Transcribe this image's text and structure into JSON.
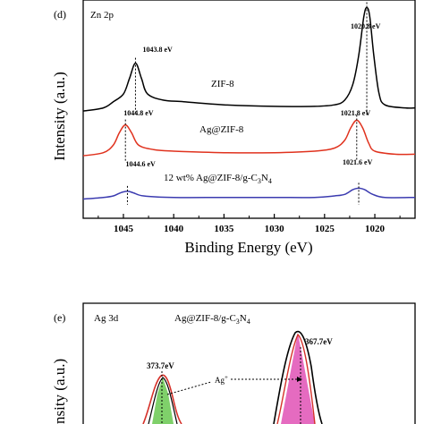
{
  "chart_data": [
    {
      "type": "line",
      "panel_label": "(d)",
      "element_label": "Zn 2p",
      "xlabel": "Binding Energy (eV)",
      "ylabel": "Intensity (a.u.)",
      "xlim": [
        1049,
        1016
      ],
      "x_ticks": [
        1045,
        1040,
        1035,
        1030,
        1025,
        1020
      ],
      "series": [
        {
          "name": "ZIF-8",
          "color": "#000000",
          "points": [
            [
              1049,
              0.66
            ],
            [
              1047,
              0.68
            ],
            [
              1046,
              0.72
            ],
            [
              1045,
              0.77
            ],
            [
              1044.4,
              0.87
            ],
            [
              1043.8,
              0.97
            ],
            [
              1043.2,
              0.87
            ],
            [
              1042.6,
              0.77
            ],
            [
              1041,
              0.73
            ],
            [
              1039,
              0.72
            ],
            [
              1035,
              0.7
            ],
            [
              1030,
              0.69
            ],
            [
              1026,
              0.69
            ],
            [
              1024,
              0.7
            ],
            [
              1023,
              0.73
            ],
            [
              1022.2,
              0.83
            ],
            [
              1021.6,
              1.02
            ],
            [
              1021.1,
              1.27
            ],
            [
              1020.8,
              1.33
            ],
            [
              1020.5,
              1.27
            ],
            [
              1020.1,
              1.02
            ],
            [
              1019.6,
              0.78
            ],
            [
              1019,
              0.7
            ],
            [
              1017,
              0.68
            ],
            [
              1016,
              0.68
            ]
          ],
          "peaks": [
            {
              "x": 1043.8,
              "label": "1043.8 eV"
            },
            {
              "x": 1020.8,
              "label": "1020.8 eV"
            }
          ]
        },
        {
          "name": "Ag@ZIF-8",
          "color": "#e0321e",
          "points": [
            [
              1049,
              0.37
            ],
            [
              1047,
              0.39
            ],
            [
              1046,
              0.44
            ],
            [
              1045.4,
              0.52
            ],
            [
              1044.8,
              0.57
            ],
            [
              1044.2,
              0.52
            ],
            [
              1043.5,
              0.44
            ],
            [
              1042,
              0.41
            ],
            [
              1040,
              0.4
            ],
            [
              1035,
              0.39
            ],
            [
              1030,
              0.39
            ],
            [
              1026,
              0.4
            ],
            [
              1024,
              0.42
            ],
            [
              1023,
              0.47
            ],
            [
              1022.4,
              0.55
            ],
            [
              1021.8,
              0.6
            ],
            [
              1021.2,
              0.55
            ],
            [
              1020.6,
              0.45
            ],
            [
              1020,
              0.4
            ],
            [
              1018,
              0.38
            ],
            [
              1016,
              0.38
            ]
          ],
          "peaks": [
            {
              "x": 1044.8,
              "label": "1044.8 eV"
            },
            {
              "x": 1021.8,
              "label": "1021.8 eV"
            }
          ]
        },
        {
          "name": "12 wt% Ag@ZIF-8/g-C3N4",
          "color": "#3b3bb0",
          "points": [
            [
              1049,
              0.09
            ],
            [
              1047,
              0.1
            ],
            [
              1046,
              0.11
            ],
            [
              1045.3,
              0.13
            ],
            [
              1044.6,
              0.14
            ],
            [
              1044,
              0.13
            ],
            [
              1043,
              0.11
            ],
            [
              1040,
              0.1
            ],
            [
              1035,
              0.1
            ],
            [
              1030,
              0.1
            ],
            [
              1026,
              0.1
            ],
            [
              1024,
              0.11
            ],
            [
              1023,
              0.12
            ],
            [
              1022.2,
              0.15
            ],
            [
              1021.6,
              0.16
            ],
            [
              1021,
              0.15
            ],
            [
              1020.2,
              0.12
            ],
            [
              1019,
              0.1
            ],
            [
              1016,
              0.1
            ]
          ],
          "peaks": [
            {
              "x": 1044.6,
              "label": "1044.6 eV"
            },
            {
              "x": 1021.6,
              "label": "1021.6 eV"
            }
          ]
        }
      ],
      "series_labels": {
        "zif8": "ZIF-8",
        "agzif8": "Ag@ZIF-8",
        "composite_prefix": "12 wt% Ag@ZIF-8/g-C",
        "composite_sub1": "3",
        "composite_mid": "N",
        "composite_sub2": "4"
      }
    },
    {
      "type": "area",
      "panel_label": "(e)",
      "element_label": "Ag 3d",
      "title_prefix": "Ag@ZIF-8/g-C",
      "title_sub1": "3",
      "title_mid": "N",
      "title_sub2": "4",
      "ylabel": "Intensity (a.u.)",
      "ylabel_visible": "nsity (a.u.)",
      "peaks": [
        {
          "x": 373.7,
          "label": "373.7eV",
          "fill": "#7fd06a"
        },
        {
          "x": 367.7,
          "label": "367.7eV",
          "fill": "#e56bc0"
        }
      ],
      "annotation": "Ag",
      "annotation_sup": "+"
    }
  ]
}
